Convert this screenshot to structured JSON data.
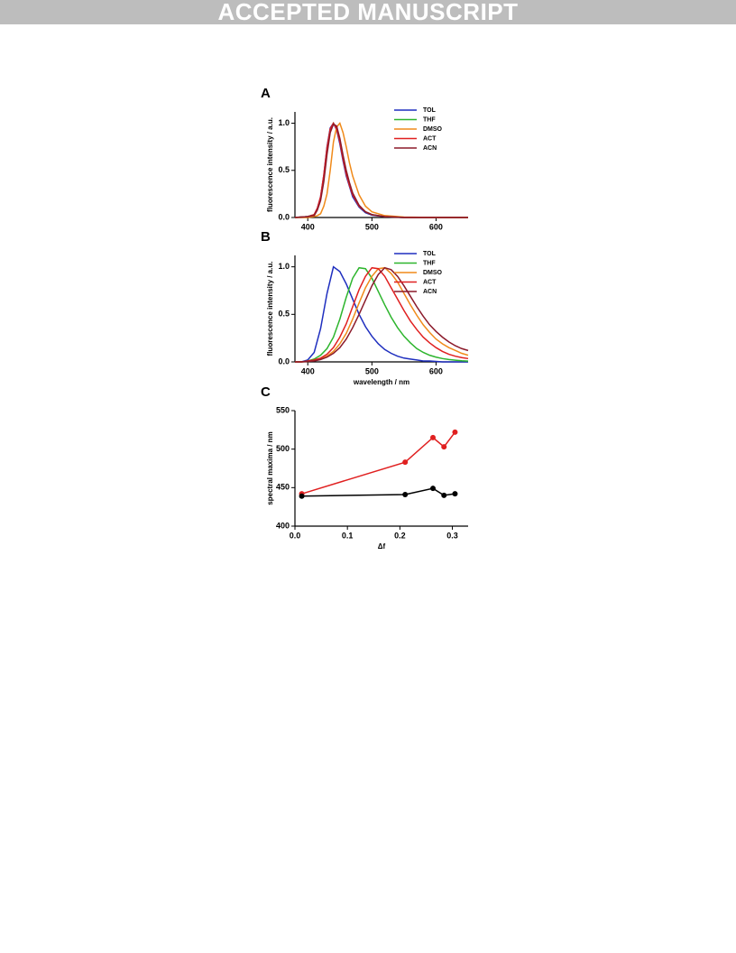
{
  "header": {
    "banner": "ACCEPTED MANUSCRIPT"
  },
  "chart_data": [
    {
      "type": "line",
      "label": "A",
      "ylabel": "fluorescence intensity / a.u.",
      "x": [
        380,
        400,
        410,
        415,
        420,
        425,
        430,
        435,
        440,
        445,
        450,
        455,
        460,
        465,
        470,
        480,
        490,
        500,
        520,
        550,
        600,
        650
      ],
      "series": [
        {
          "name": "TOL",
          "color": "#1f2fbf",
          "values": [
            0,
            0.01,
            0.03,
            0.1,
            0.22,
            0.45,
            0.75,
            0.95,
            1.0,
            0.93,
            0.78,
            0.6,
            0.44,
            0.33,
            0.22,
            0.11,
            0.05,
            0.025,
            0.008,
            0,
            0,
            0
          ]
        },
        {
          "name": "THF",
          "color": "#2db52d",
          "values": [
            0,
            0.01,
            0.03,
            0.09,
            0.2,
            0.42,
            0.72,
            0.93,
            1.0,
            0.95,
            0.81,
            0.63,
            0.47,
            0.35,
            0.25,
            0.12,
            0.06,
            0.03,
            0.01,
            0,
            0,
            0
          ]
        },
        {
          "name": "DMSO",
          "color": "#f08a1a",
          "values": [
            0,
            0,
            0.01,
            0.02,
            0.04,
            0.12,
            0.25,
            0.5,
            0.8,
            0.96,
            1.0,
            0.9,
            0.75,
            0.58,
            0.44,
            0.24,
            0.12,
            0.06,
            0.02,
            0.005,
            0,
            0
          ]
        },
        {
          "name": "ACT",
          "color": "#e02020",
          "values": [
            0,
            0.01,
            0.03,
            0.1,
            0.22,
            0.45,
            0.74,
            0.94,
            1.0,
            0.94,
            0.8,
            0.62,
            0.46,
            0.34,
            0.24,
            0.12,
            0.06,
            0.03,
            0.01,
            0,
            0,
            0
          ]
        },
        {
          "name": "ACN",
          "color": "#8b1a2a",
          "values": [
            0,
            0.01,
            0.02,
            0.08,
            0.18,
            0.38,
            0.67,
            0.9,
            0.99,
            0.97,
            0.84,
            0.66,
            0.5,
            0.37,
            0.26,
            0.13,
            0.06,
            0.03,
            0.01,
            0,
            0,
            0
          ]
        }
      ],
      "xlim": [
        380,
        650
      ],
      "xticks": [
        400,
        500,
        600
      ],
      "ylim": [
        0,
        1.12
      ],
      "yticks": [
        {
          "value": 0,
          "label": "0.0"
        },
        {
          "value": 0.5,
          "label": "0.5"
        },
        {
          "value": 1,
          "label": "1.0"
        }
      ],
      "legend": "upper right"
    },
    {
      "type": "line",
      "label": "B",
      "ylabel": "fluorescence intensity / a.u.",
      "xlabel": "wavelength / nm",
      "x": [
        380,
        390,
        400,
        410,
        420,
        430,
        440,
        450,
        460,
        470,
        480,
        490,
        500,
        510,
        520,
        530,
        540,
        550,
        560,
        570,
        580,
        590,
        600,
        610,
        620,
        630,
        640,
        650
      ],
      "series": [
        {
          "name": "TOL",
          "color": "#1f2fbf",
          "values": [
            0,
            0,
            0.02,
            0.1,
            0.35,
            0.72,
            1.0,
            0.95,
            0.82,
            0.66,
            0.5,
            0.37,
            0.27,
            0.19,
            0.13,
            0.09,
            0.06,
            0.04,
            0.03,
            0.02,
            0.01,
            0.01,
            0.005,
            0,
            0,
            0,
            0,
            0
          ]
        },
        {
          "name": "THF",
          "color": "#2db52d",
          "values": [
            0,
            0,
            0.01,
            0.03,
            0.07,
            0.14,
            0.26,
            0.45,
            0.68,
            0.88,
            0.99,
            0.98,
            0.88,
            0.74,
            0.6,
            0.47,
            0.36,
            0.27,
            0.2,
            0.14,
            0.1,
            0.07,
            0.05,
            0.035,
            0.025,
            0.018,
            0.012,
            0.008
          ]
        },
        {
          "name": "DMSO",
          "color": "#f08a1a",
          "values": [
            0,
            0,
            0.005,
            0.015,
            0.03,
            0.06,
            0.11,
            0.19,
            0.3,
            0.45,
            0.62,
            0.78,
            0.9,
            0.98,
            0.99,
            0.93,
            0.84,
            0.72,
            0.6,
            0.49,
            0.39,
            0.31,
            0.24,
            0.19,
            0.15,
            0.12,
            0.09,
            0.07
          ]
        },
        {
          "name": "ACT",
          "color": "#e02020",
          "values": [
            0,
            0,
            0.01,
            0.02,
            0.04,
            0.08,
            0.15,
            0.26,
            0.4,
            0.58,
            0.76,
            0.9,
            0.99,
            0.98,
            0.9,
            0.78,
            0.66,
            0.54,
            0.43,
            0.34,
            0.26,
            0.2,
            0.15,
            0.11,
            0.08,
            0.06,
            0.045,
            0.035
          ]
        },
        {
          "name": "ACN",
          "color": "#8b1a2a",
          "values": [
            0,
            0,
            0.005,
            0.01,
            0.025,
            0.05,
            0.09,
            0.15,
            0.24,
            0.36,
            0.5,
            0.65,
            0.8,
            0.92,
            0.99,
            0.97,
            0.9,
            0.8,
            0.69,
            0.58,
            0.48,
            0.39,
            0.32,
            0.26,
            0.21,
            0.17,
            0.14,
            0.12
          ]
        }
      ],
      "xlim": [
        380,
        650
      ],
      "xticks": [
        400,
        500,
        600
      ],
      "ylim": [
        0,
        1.12
      ],
      "yticks": [
        {
          "value": 0,
          "label": "0.0"
        },
        {
          "value": 0.5,
          "label": "0.5"
        },
        {
          "value": 1,
          "label": "1.0"
        }
      ],
      "legend": "upper right"
    },
    {
      "type": "line",
      "label": "C",
      "ylabel": "spectral maxima / nm",
      "xlabel": "Δf",
      "x": [
        0.013,
        0.21,
        0.263,
        0.284,
        0.305
      ],
      "series": [
        {
          "color": "#e02020",
          "values": [
            442,
            483,
            515,
            503,
            522
          ]
        },
        {
          "color": "#000000",
          "values": [
            439,
            441,
            449,
            440,
            442
          ]
        }
      ],
      "xlim": [
        0,
        0.33
      ],
      "xticks": [
        {
          "value": 0,
          "label": "0.0"
        },
        0.1,
        0.2,
        0.3
      ],
      "ylim": [
        400,
        550
      ],
      "yticks": [
        400,
        450,
        500,
        550
      ],
      "markers": true
    }
  ]
}
